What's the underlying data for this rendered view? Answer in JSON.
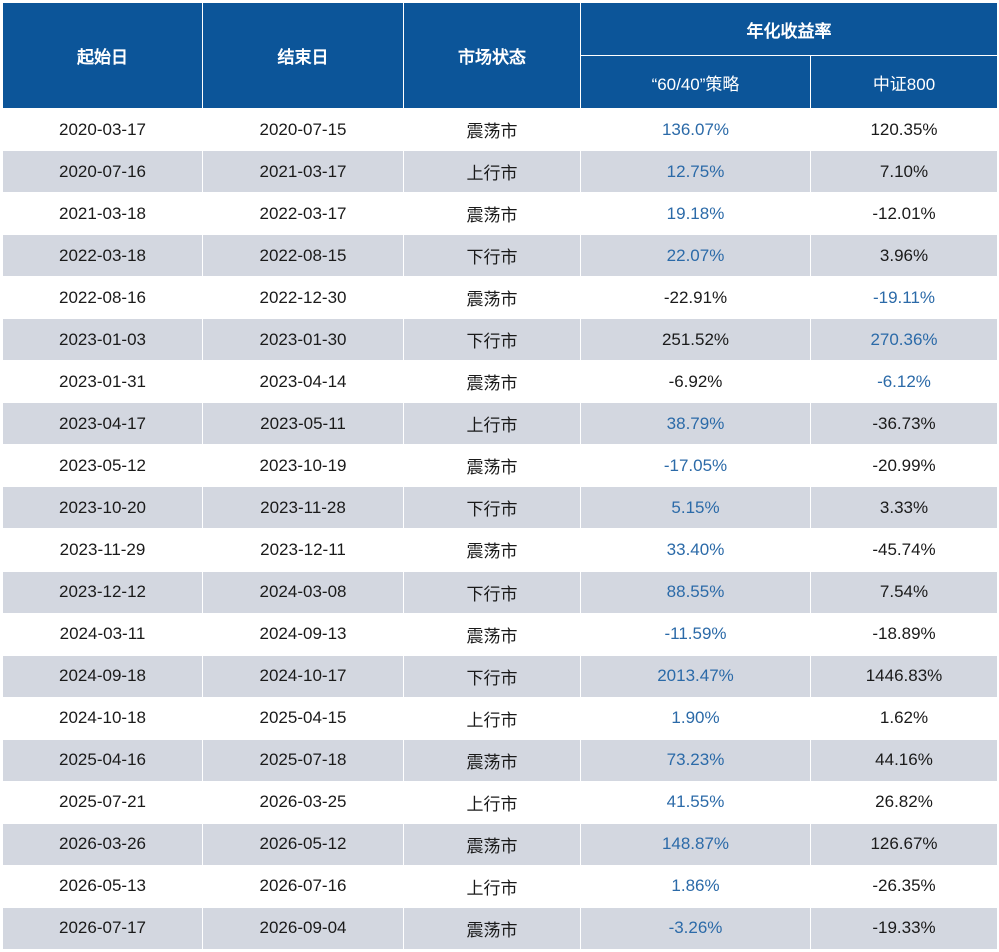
{
  "header": {
    "start_date": "起始日",
    "end_date": "结束日",
    "market_state": "市场状态",
    "annualized_return": "年化收益率",
    "strategy": "“60/40”策略",
    "csi800": "中证800"
  },
  "colors": {
    "header_bg": "#0c5599",
    "stripe": "#d3d7e0",
    "highlight_text": "#2b6aa8"
  },
  "rows": [
    {
      "start": "2020-03-17",
      "end": "2020-07-15",
      "state": "震荡市",
      "strategy": "136.07%",
      "csi800": "120.35%",
      "best": "strategy"
    },
    {
      "start": "2020-07-16",
      "end": "2021-03-17",
      "state": "上行市",
      "strategy": "12.75%",
      "csi800": "7.10%",
      "best": "strategy"
    },
    {
      "start": "2021-03-18",
      "end": "2022-03-17",
      "state": "震荡市",
      "strategy": "19.18%",
      "csi800": "-12.01%",
      "best": "strategy"
    },
    {
      "start": "2022-03-18",
      "end": "2022-08-15",
      "state": "下行市",
      "strategy": "22.07%",
      "csi800": "3.96%",
      "best": "strategy"
    },
    {
      "start": "2022-08-16",
      "end": "2022-12-30",
      "state": "震荡市",
      "strategy": "-22.91%",
      "csi800": "-19.11%",
      "best": "csi800"
    },
    {
      "start": "2023-01-03",
      "end": "2023-01-30",
      "state": "下行市",
      "strategy": "251.52%",
      "csi800": "270.36%",
      "best": "csi800"
    },
    {
      "start": "2023-01-31",
      "end": "2023-04-14",
      "state": "震荡市",
      "strategy": "-6.92%",
      "csi800": "-6.12%",
      "best": "csi800"
    },
    {
      "start": "2023-04-17",
      "end": "2023-05-11",
      "state": "上行市",
      "strategy": "38.79%",
      "csi800": "-36.73%",
      "best": "strategy"
    },
    {
      "start": "2023-05-12",
      "end": "2023-10-19",
      "state": "震荡市",
      "strategy": "-17.05%",
      "csi800": "-20.99%",
      "best": "strategy"
    },
    {
      "start": "2023-10-20",
      "end": "2023-11-28",
      "state": "下行市",
      "strategy": "5.15%",
      "csi800": "3.33%",
      "best": "strategy"
    },
    {
      "start": "2023-11-29",
      "end": "2023-12-11",
      "state": "震荡市",
      "strategy": "33.40%",
      "csi800": "-45.74%",
      "best": "strategy"
    },
    {
      "start": "2023-12-12",
      "end": "2024-03-08",
      "state": "下行市",
      "strategy": "88.55%",
      "csi800": "7.54%",
      "best": "strategy"
    },
    {
      "start": "2024-03-11",
      "end": "2024-09-13",
      "state": "震荡市",
      "strategy": "-11.59%",
      "csi800": "-18.89%",
      "best": "strategy"
    },
    {
      "start": "2024-09-18",
      "end": "2024-10-17",
      "state": "下行市",
      "strategy": "2013.47%",
      "csi800": "1446.83%",
      "best": "strategy"
    },
    {
      "start": "2024-10-18",
      "end": "2025-04-15",
      "state": "上行市",
      "strategy": "1.90%",
      "csi800": "1.62%",
      "best": "strategy"
    },
    {
      "start": "2025-04-16",
      "end": "2025-07-18",
      "state": "震荡市",
      "strategy": "73.23%",
      "csi800": "44.16%",
      "best": "strategy"
    },
    {
      "start": "2025-07-21",
      "end": "2026-03-25",
      "state": "上行市",
      "strategy": "41.55%",
      "csi800": "26.82%",
      "best": "strategy"
    },
    {
      "start": "2026-03-26",
      "end": "2026-05-12",
      "state": "震荡市",
      "strategy": "148.87%",
      "csi800": "126.67%",
      "best": "strategy"
    },
    {
      "start": "2026-05-13",
      "end": "2026-07-16",
      "state": "上行市",
      "strategy": "1.86%",
      "csi800": "-26.35%",
      "best": "strategy"
    },
    {
      "start": "2026-07-17",
      "end": "2026-09-04",
      "state": "震荡市",
      "strategy": "-3.26%",
      "csi800": "-19.33%",
      "best": "strategy"
    }
  ]
}
